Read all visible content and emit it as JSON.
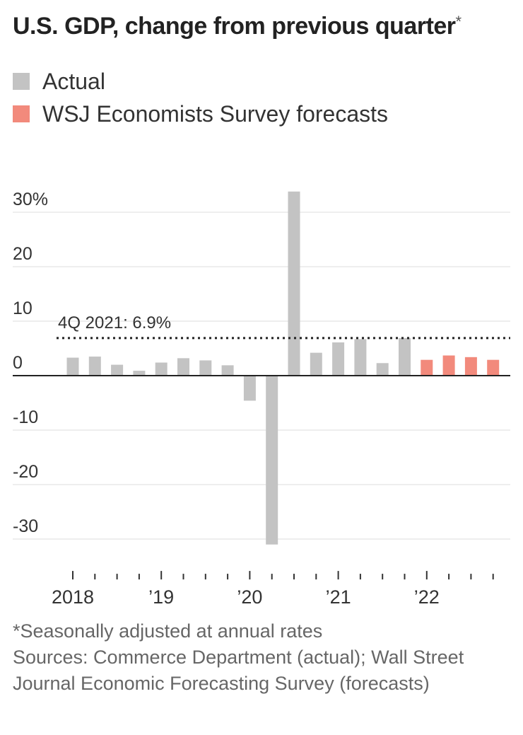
{
  "title": "U.S. GDP, change from previous quarter",
  "title_marker": "*",
  "legend": [
    {
      "label": "Actual",
      "color": "#c3c3c3"
    },
    {
      "label": "WSJ Economists Survey forecasts",
      "color": "#f28a7c"
    }
  ],
  "footnote": "*Seasonally adjusted at annual rates",
  "sources": "Sources: Commerce Department (actual); Wall Street Journal Economic Forecasting Survey (forecasts)",
  "chart_data": {
    "type": "bar",
    "title": "U.S. GDP, change from previous quarter",
    "ylabel": "",
    "xlabel": "",
    "ylim": [
      -33,
      34
    ],
    "yticks": [
      30,
      20,
      10,
      0,
      -10,
      -20,
      -30
    ],
    "ytick_labels": [
      "30%",
      "20",
      "10",
      "0",
      "-10",
      "-20",
      "-30"
    ],
    "categories": [
      "1Q18",
      "2Q18",
      "3Q18",
      "4Q18",
      "1Q19",
      "2Q19",
      "3Q19",
      "4Q19",
      "1Q20",
      "2Q20",
      "3Q20",
      "4Q20",
      "1Q21",
      "2Q21",
      "3Q21",
      "4Q21",
      "1Q22",
      "2Q22",
      "3Q22",
      "4Q22"
    ],
    "series": [
      {
        "name": "Actual",
        "color": "#c3c3c3",
        "values": [
          3.3,
          3.5,
          2.0,
          0.9,
          2.4,
          3.2,
          2.8,
          1.9,
          -4.6,
          -31.0,
          33.8,
          4.2,
          6.1,
          6.7,
          2.3,
          6.9,
          null,
          null,
          null,
          null
        ]
      },
      {
        "name": "WSJ Economists Survey forecasts",
        "color": "#f28a7c",
        "values": [
          null,
          null,
          null,
          null,
          null,
          null,
          null,
          null,
          null,
          null,
          null,
          null,
          null,
          null,
          null,
          null,
          2.9,
          3.7,
          3.4,
          2.9
        ]
      }
    ],
    "x_labels": [
      {
        "label": "2018",
        "index": 0
      },
      {
        "label": "’19",
        "index": 4
      },
      {
        "label": "’20",
        "index": 8
      },
      {
        "label": "’21",
        "index": 12
      },
      {
        "label": "’22",
        "index": 16
      }
    ],
    "reference_line": {
      "value": 6.9,
      "label": "4Q 2021: 6.9%"
    },
    "grid": true
  }
}
